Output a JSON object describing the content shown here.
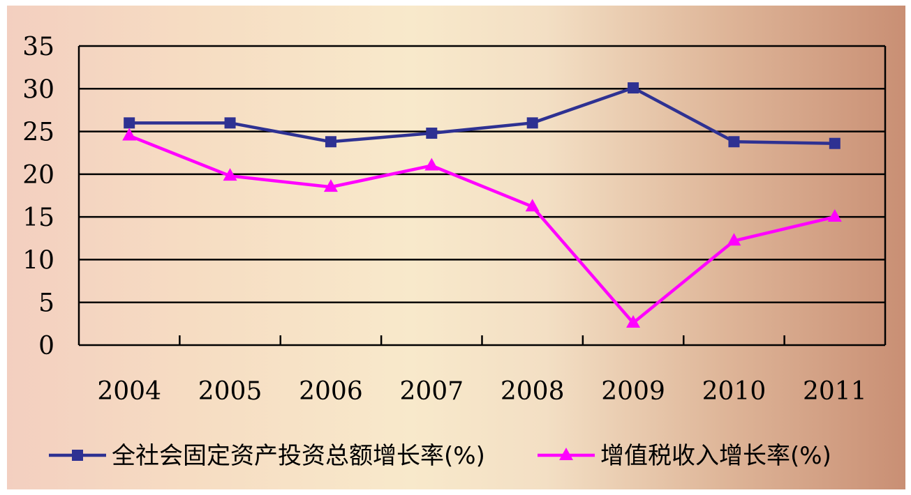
{
  "chart_data": {
    "type": "line",
    "categories": [
      "2004",
      "2005",
      "2006",
      "2007",
      "2008",
      "2009",
      "2010",
      "2011"
    ],
    "series": [
      {
        "name": "全社会固定资产投资总额增长率(%)",
        "color": "#2e3192",
        "marker": "square",
        "values": [
          26.0,
          26.0,
          23.8,
          24.8,
          26.0,
          30.1,
          23.8,
          23.6
        ]
      },
      {
        "name": "增值税收入增长率(%)",
        "color": "#ff00ff",
        "marker": "triangle",
        "values": [
          24.5,
          19.8,
          18.5,
          21.0,
          16.2,
          2.6,
          12.2,
          15.0
        ]
      }
    ],
    "yticks": [
      "0",
      "5",
      "10",
      "15",
      "20",
      "25",
      "30",
      "35"
    ],
    "ylim": [
      0,
      35
    ],
    "grid": true,
    "legend_position": "bottom"
  }
}
